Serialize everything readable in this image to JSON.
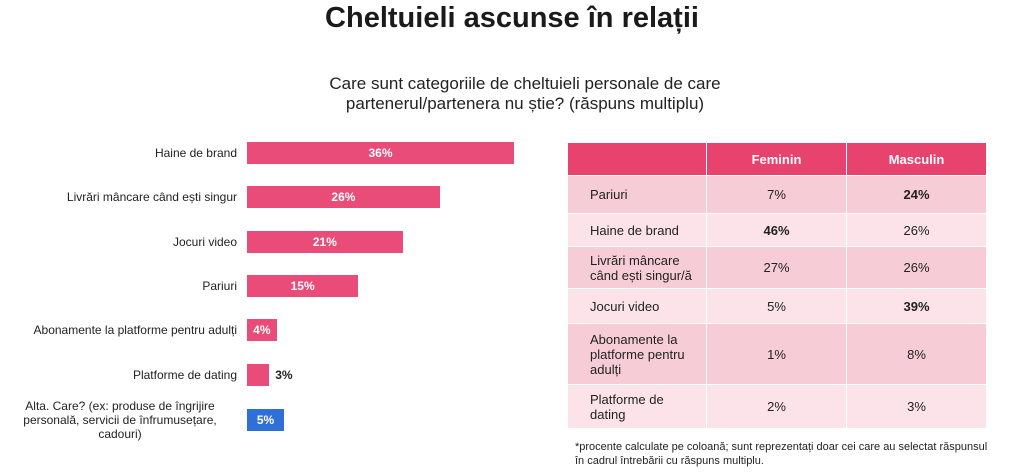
{
  "chart_data": {
    "type": "bar",
    "orientation": "horizontal",
    "title": "Cheltuieli ascunse în relații",
    "subtitle": "Care sunt categoriile de cheltuieli personale de care partenerul/partenera nu știe? (răspuns multiplu)",
    "categories": [
      "Haine de brand",
      "Livrări mâncare când ești singur",
      "Jocuri video",
      "Pariuri",
      "Abonamente la platforme pentru adulți",
      "Platforme de dating",
      "Alta. Care? (ex: produse de îngrijire personală, servicii de înfrumusețare, cadouri)"
    ],
    "values": [
      36,
      26,
      21,
      15,
      4,
      3,
      5
    ],
    "value_labels": [
      "36%",
      "26%",
      "21%",
      "15%",
      "4%",
      "3%",
      "5%"
    ],
    "colors": [
      "#ea4c79",
      "#ea4c79",
      "#ea4c79",
      "#ea4c79",
      "#ea4c79",
      "#ea4c79",
      "#2f6fd8"
    ]
  },
  "table": {
    "header": [
      "",
      "Feminin",
      "Masculin"
    ],
    "rows": [
      [
        "Pariuri",
        "7%",
        "24%"
      ],
      [
        "Haine de brand",
        "46%",
        "26%"
      ],
      [
        "Livrări mâncare când ești singur/ă",
        "27%",
        "26%"
      ],
      [
        "Jocuri video",
        "5%",
        "39%"
      ],
      [
        "Abonamente la platforme pentru adulți",
        "1%",
        "8%"
      ],
      [
        "Platforme de dating",
        "2%",
        "3%"
      ]
    ],
    "bold_cells": [
      [
        0,
        2
      ],
      [
        1,
        1
      ],
      [
        3,
        2
      ]
    ]
  },
  "footnote": "*procente calculate pe coloană; sunt reprezentați doar cei care au selectat răspunsul în cadrul întrebării cu răspuns multiplu."
}
